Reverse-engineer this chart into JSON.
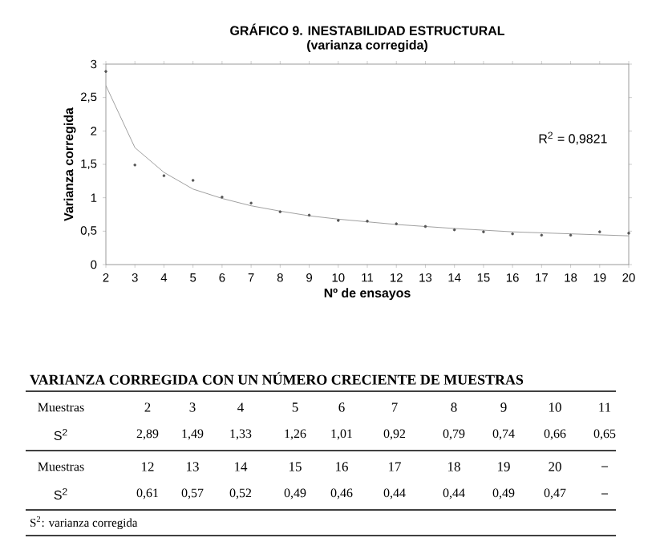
{
  "chart_data": {
    "type": "scatter",
    "title": "GRÁFICO 9. INESTABILIDAD ESTRUCTURAL",
    "subtitle": "(varianza corregida)",
    "xlabel": "Nº de ensayos",
    "ylabel": "Varianza corregida",
    "xlim": [
      2,
      20
    ],
    "xticks": [
      2,
      3,
      4,
      5,
      6,
      7,
      8,
      9,
      10,
      11,
      12,
      13,
      14,
      15,
      16,
      17,
      18,
      19,
      20
    ],
    "ylim": [
      0,
      3
    ],
    "yticks": [
      0,
      {
        "value": 0.5,
        "label": "0,5"
      },
      1,
      {
        "value": 1.5,
        "label": "1,5"
      },
      2,
      {
        "value": 2.5,
        "label": "2,5"
      },
      3
    ],
    "grid": false,
    "legend": false,
    "series": [
      {
        "type": "scatter",
        "marker": "circle",
        "color": "#555555",
        "x": [
          2,
          3,
          4,
          5,
          6,
          7,
          8,
          9,
          10,
          11,
          12,
          13,
          14,
          15,
          16,
          17,
          18,
          19,
          20
        ],
        "values": [
          2.89,
          1.49,
          1.33,
          1.26,
          1.01,
          0.92,
          0.79,
          0.74,
          0.66,
          0.65,
          0.61,
          0.57,
          0.52,
          0.49,
          0.46,
          0.44,
          0.44,
          0.49,
          0.47
        ]
      },
      {
        "type": "line",
        "color": "#888888",
        "x": [
          2,
          3,
          4,
          5,
          6,
          7,
          8,
          9,
          10,
          11,
          12,
          14,
          16,
          18,
          20
        ],
        "values": [
          2.68,
          1.75,
          1.38,
          1.13,
          0.99,
          0.88,
          0.8,
          0.73,
          0.68,
          0.64,
          0.6,
          0.54,
          0.49,
          0.46,
          0.43
        ]
      }
    ],
    "annotations": [
      "R$^{2}$ = 0,9821",
      "VARIANZA CORREGIDA CON UN NÚMERO CRECIENTE DE MUESTRAS",
      "Muestras",
      "S$^{2}$",
      "S$^{2}$: varianza corregida",
      "2",
      "3",
      "4",
      "5",
      "6",
      "7",
      "8",
      "9",
      "10",
      "11",
      "12",
      "13",
      "14",
      "15",
      "16",
      "17",
      "18",
      "19",
      "20",
      "2,89",
      "1,49",
      "1,33",
      "1,26",
      "1,01",
      "0,92",
      "0,79",
      "0,74",
      "0,66",
      "0,65",
      "0,61",
      "0,57",
      "0,52",
      "0,49",
      "0,46",
      "0,44",
      "0,44",
      "0,49",
      "0,47"
    ]
  }
}
